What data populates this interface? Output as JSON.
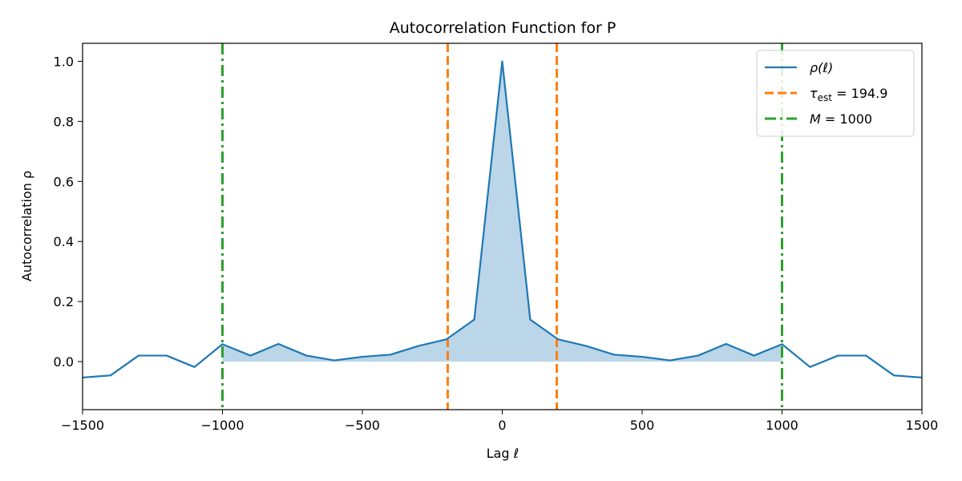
{
  "chart_data": {
    "type": "line",
    "title": "Autocorrelation Function for P",
    "xlabel": "Lag ℓ",
    "ylabel": "Autocorrelation ρ",
    "xlim": [
      -1500,
      1500
    ],
    "ylim": [
      -0.16,
      1.06
    ],
    "xticks": [
      -1500,
      -1000,
      -500,
      0,
      500,
      1000,
      1500
    ],
    "xtick_labels": [
      "−1500",
      "−1000",
      "−500",
      "0",
      "500",
      "1000",
      "1500"
    ],
    "yticks": [
      0.0,
      0.2,
      0.4,
      0.6,
      0.8,
      1.0
    ],
    "ytick_labels": [
      "0.0",
      "0.2",
      "0.4",
      "0.6",
      "0.8",
      "1.0"
    ],
    "grid": false,
    "legend_position": "top-right",
    "series": [
      {
        "name": "ρ(ℓ)",
        "color": "#1f77b4",
        "x": [
          -1500,
          -1400,
          -1300,
          -1200,
          -1100,
          -1000,
          -900,
          -800,
          -700,
          -600,
          -500,
          -400,
          -300,
          -200,
          -100,
          0,
          100,
          200,
          300,
          400,
          500,
          600,
          700,
          800,
          900,
          1000,
          1100,
          1200,
          1300,
          1400,
          1500
        ],
        "y": [
          -0.053,
          -0.046,
          0.02,
          0.02,
          -0.018,
          0.058,
          0.02,
          0.059,
          0.02,
          0.004,
          0.016,
          0.023,
          0.052,
          0.074,
          0.14,
          1.0,
          0.14,
          0.074,
          0.052,
          0.023,
          0.016,
          0.004,
          0.02,
          0.059,
          0.02,
          0.058,
          -0.018,
          0.02,
          0.02,
          -0.046,
          -0.053
        ]
      }
    ],
    "fill": {
      "x_range": [
        -1000,
        1000
      ],
      "color": "#1f77b4",
      "opacity": 0.3
    },
    "vlines": [
      {
        "label": "τ_est = 194.9",
        "label_main": "τ",
        "label_sub": "est",
        "label_rest": " = 194.9",
        "positions": [
          -194.9,
          194.9
        ],
        "color": "#ff7f0e",
        "style": "dashed"
      },
      {
        "label": "M = 1000",
        "label_main": "M",
        "label_sub": "",
        "label_rest": " = 1000",
        "positions": [
          -1000,
          1000
        ],
        "color": "#2ca02c",
        "style": "dashdot"
      }
    ]
  }
}
